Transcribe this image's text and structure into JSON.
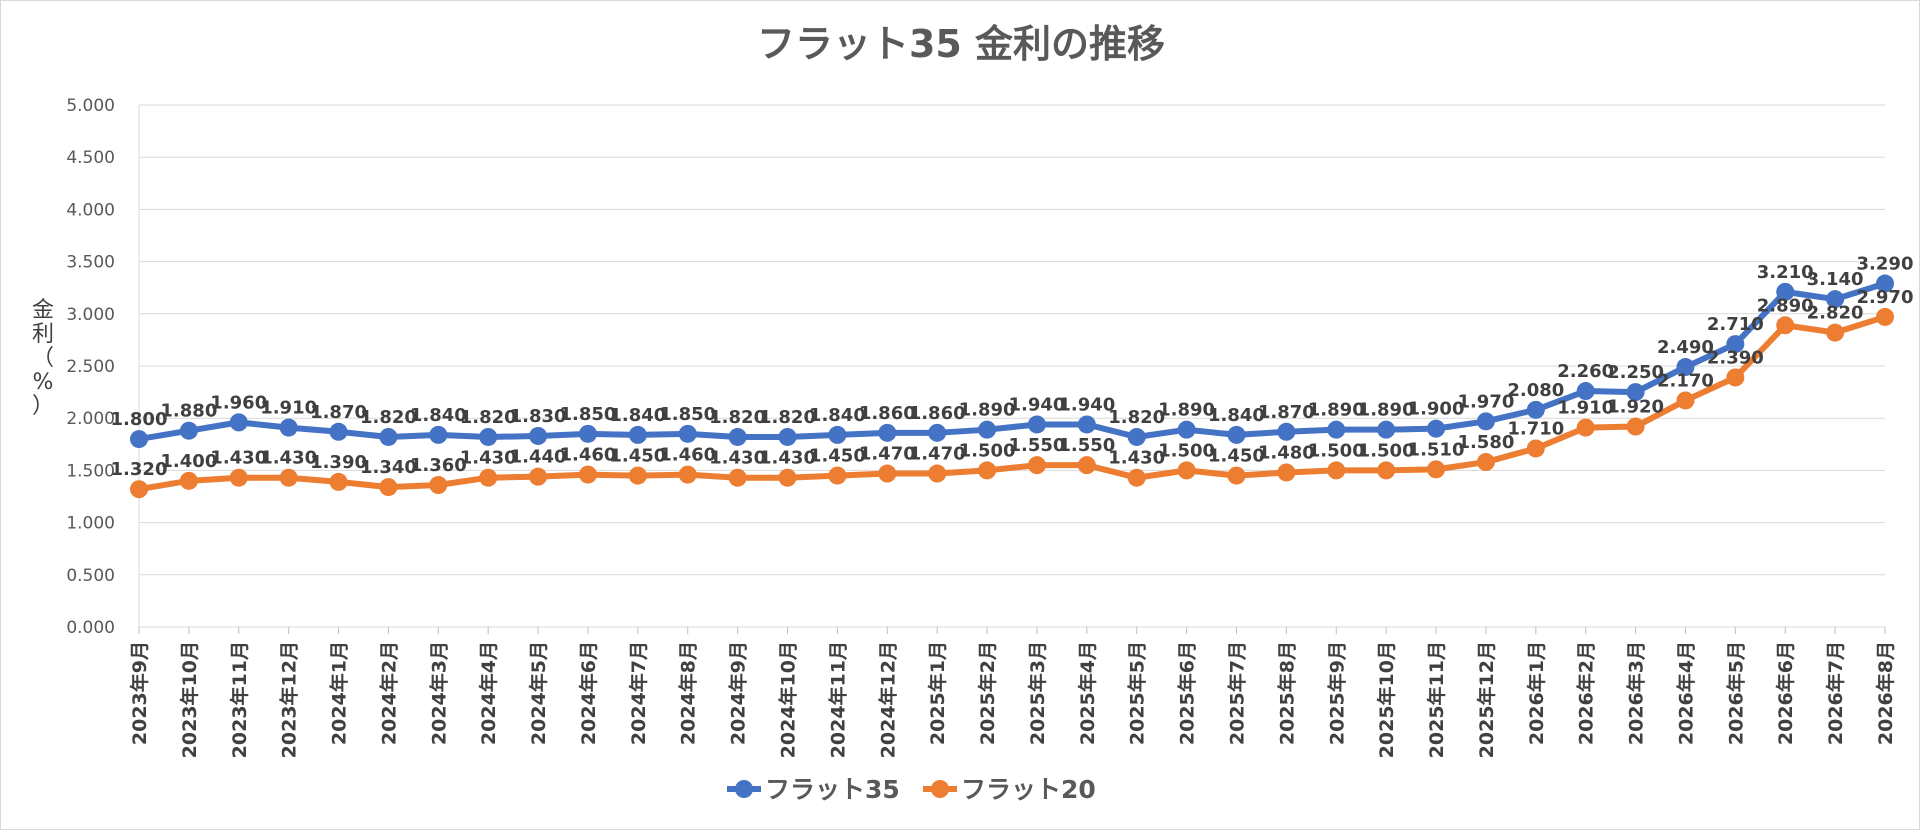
{
  "chart_data": {
    "type": "line",
    "title": "フラット35 金利の推移",
    "ylabel": "金利（%）",
    "xlabel": "",
    "ylim": [
      0,
      5
    ],
    "ytick_values": [
      0,
      0.5,
      1,
      1.5,
      2,
      2.5,
      3,
      3.5,
      4,
      4.5,
      5
    ],
    "ytick_labels": [
      "0.000",
      "0.500",
      "1.000",
      "1.500",
      "2.000",
      "2.500",
      "3.000",
      "3.500",
      "4.000",
      "4.500",
      "5.000"
    ],
    "grid": true,
    "legend_position": "bottom",
    "categories": [
      "2023年9月",
      "2023年10月",
      "2023年11月",
      "2023年12月",
      "2024年1月",
      "2024年2月",
      "2024年3月",
      "2024年4月",
      "2024年5月",
      "2024年6月",
      "2024年7月",
      "2024年8月",
      "2024年9月",
      "2024年10月",
      "2024年11月",
      "2024年12月",
      "2025年1月",
      "2025年2月",
      "2025年3月",
      "2025年4月",
      "2025年5月",
      "2025年6月",
      "2025年7月",
      "2025年8月",
      "2025年9月",
      "2025年10月",
      "2025年11月",
      "2025年12月",
      "2026年1月",
      "2026年2月",
      "2026年3月",
      "2026年4月",
      "2026年5月",
      "2026年6月",
      "2026年7月",
      "2026年8月"
    ],
    "series": [
      {
        "name": "フラット35",
        "color": "#4472C4",
        "values": [
          1.8,
          1.88,
          1.96,
          1.91,
          1.87,
          1.82,
          1.84,
          1.82,
          1.83,
          1.85,
          1.84,
          1.85,
          1.82,
          1.82,
          1.84,
          1.86,
          1.86,
          1.89,
          1.94,
          1.94,
          1.82,
          1.89,
          1.84,
          1.87,
          1.89,
          1.89,
          1.9,
          1.97,
          2.08,
          2.26,
          2.25,
          2.49,
          2.71,
          3.21,
          3.14,
          3.29
        ],
        "labels": [
          "1.800",
          "1.880",
          "1.960",
          "1.910",
          "1.870",
          "1.820",
          "1.840",
          "1.820",
          "1.830",
          "1.850",
          "1.840",
          "1.850",
          "1.820",
          "1.820",
          "1.840",
          "1.860",
          "1.860",
          "1.890",
          "1.940",
          "1.940",
          "1.820",
          "1.890",
          "1.840",
          "1.870",
          "1.890",
          "1.890",
          "1.900",
          "1.970",
          "2.080",
          "2.260",
          "2.250",
          "2.490",
          "2.710",
          "3.210",
          "3.140",
          "3.290"
        ]
      },
      {
        "name": "フラット20",
        "color": "#ED7D31",
        "values": [
          1.32,
          1.4,
          1.43,
          1.43,
          1.39,
          1.34,
          1.36,
          1.43,
          1.44,
          1.46,
          1.45,
          1.46,
          1.43,
          1.43,
          1.45,
          1.47,
          1.47,
          1.5,
          1.55,
          1.55,
          1.43,
          1.5,
          1.45,
          1.48,
          1.5,
          1.5,
          1.51,
          1.58,
          1.71,
          1.91,
          1.92,
          2.17,
          2.39,
          2.89,
          2.82,
          2.97
        ],
        "labels": [
          "1.320",
          "1.400",
          "1.430",
          "1.430",
          "1.390",
          "1.340",
          "1.360",
          "1.430",
          "1.440",
          "1.460",
          "1.450",
          "1.460",
          "1.430",
          "1.430",
          "1.450",
          "1.470",
          "1.470",
          "1.500",
          "1.550",
          "1.550",
          "1.430",
          "1.500",
          "1.450",
          "1.480",
          "1.500",
          "1.500",
          "1.510",
          "1.580",
          "1.710",
          "1.910",
          "1.920",
          "2.170",
          "2.390",
          "2.890",
          "2.820",
          "2.970"
        ]
      }
    ]
  }
}
